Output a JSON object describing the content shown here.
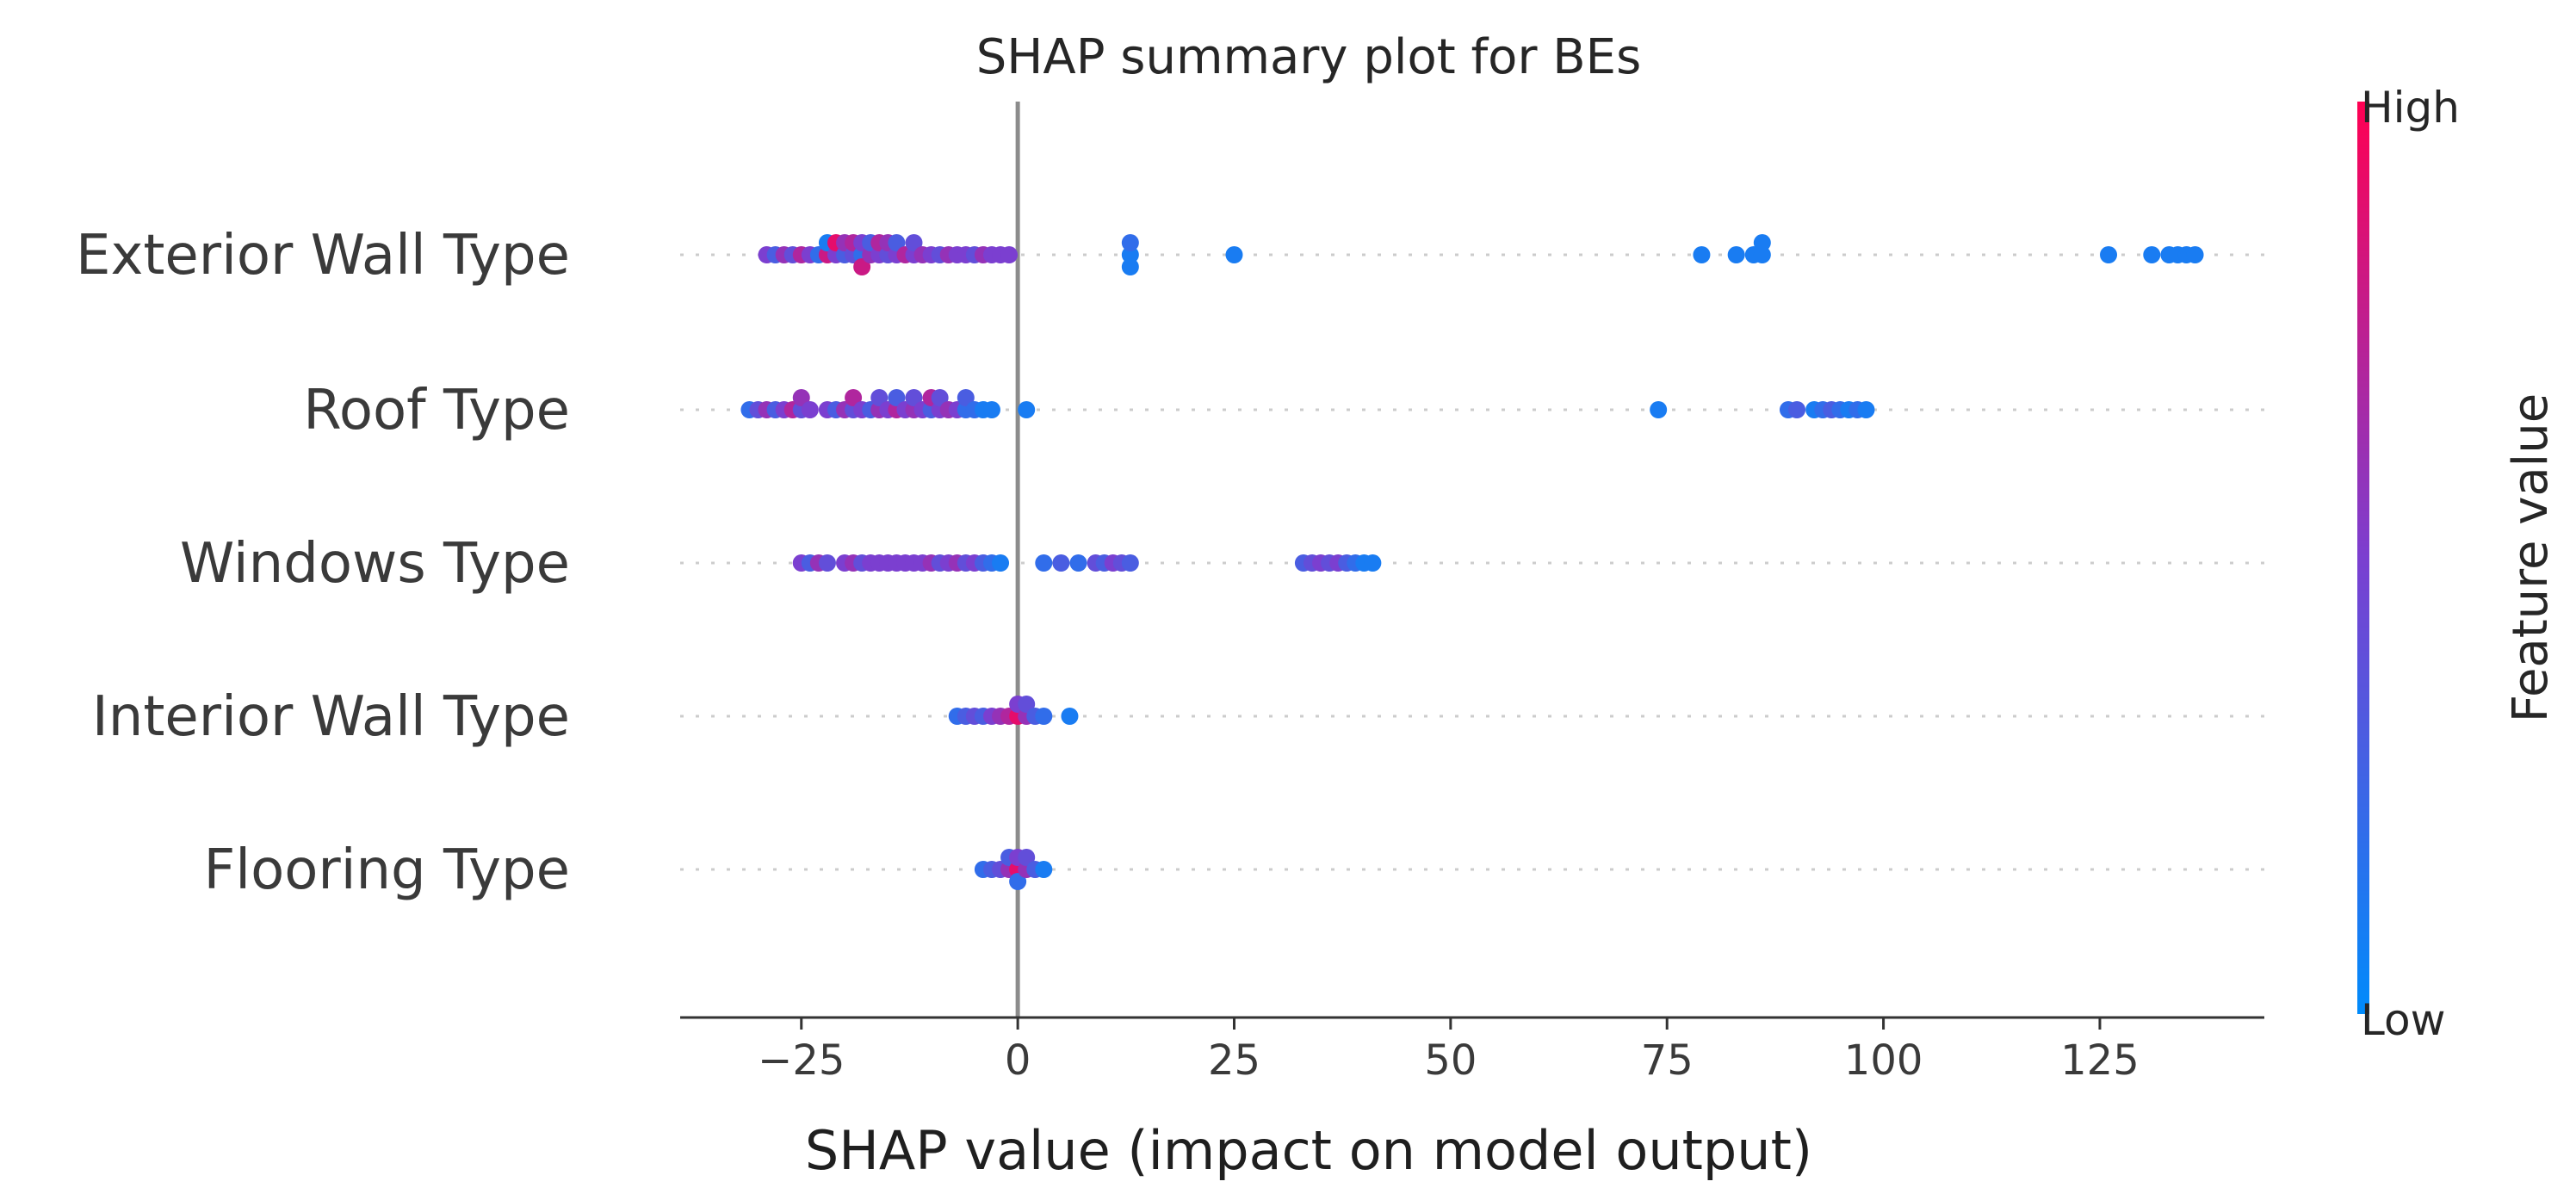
{
  "chart_data": {
    "type": "scatter",
    "title": "SHAP summary plot for BEs",
    "xlabel": "SHAP value (impact on model output)",
    "xlim": [
      -39,
      144
    ],
    "x_ticks": [
      -25,
      0,
      25,
      50,
      75,
      100,
      125
    ],
    "x_tick_labels": [
      "−25",
      "0",
      "25",
      "50",
      "75",
      "100",
      "125"
    ],
    "colorbar": {
      "title": "Feature value",
      "high_label": "High",
      "low_label": "Low",
      "high_color": "#ff0052",
      "low_color": "#008bfb"
    },
    "features": [
      {
        "name": "Exterior Wall Type",
        "points": [
          [
            -29,
            0.5
          ],
          [
            -28,
            0.3
          ],
          [
            -27,
            0.6
          ],
          [
            -26,
            0.4
          ],
          [
            -25,
            0.7
          ],
          [
            -24,
            0.5
          ],
          [
            -23,
            0.2
          ],
          [
            -22,
            0.8
          ],
          [
            -22,
            0.1
          ],
          [
            -21,
            0.5
          ],
          [
            -21,
            0.9
          ],
          [
            -20,
            0.3
          ],
          [
            -20,
            0.6
          ],
          [
            -19,
            0.4
          ],
          [
            -19,
            0.7
          ],
          [
            -18,
            0.2
          ],
          [
            -18,
            0.5
          ],
          [
            -18,
            0.8
          ],
          [
            -17,
            0.6
          ],
          [
            -17,
            0.3
          ],
          [
            -16,
            0.5
          ],
          [
            -16,
            0.7
          ],
          [
            -15,
            0.4
          ],
          [
            -15,
            0.6
          ],
          [
            -14,
            0.5
          ],
          [
            -14,
            0.3
          ],
          [
            -13,
            0.7
          ],
          [
            -12,
            0.5
          ],
          [
            -12,
            0.4
          ],
          [
            -11,
            0.6
          ],
          [
            -10,
            0.5
          ],
          [
            -9,
            0.4
          ],
          [
            -8,
            0.6
          ],
          [
            -7,
            0.5
          ],
          [
            -6,
            0.5
          ],
          [
            -5,
            0.4
          ],
          [
            -4,
            0.6
          ],
          [
            -3,
            0.5
          ],
          [
            -2,
            0.5
          ],
          [
            -1,
            0.5
          ],
          [
            13,
            0.1
          ],
          [
            13,
            0.2
          ],
          [
            13,
            0.1
          ],
          [
            25,
            0.1
          ],
          [
            79,
            0.1
          ],
          [
            83,
            0.1
          ],
          [
            85,
            0.1
          ],
          [
            86,
            0.1
          ],
          [
            86,
            0.1
          ],
          [
            126,
            0.1
          ],
          [
            131,
            0.1
          ],
          [
            133,
            0.1
          ],
          [
            134,
            0.1
          ],
          [
            135,
            0.1
          ],
          [
            136,
            0.1
          ]
        ]
      },
      {
        "name": "Roof Type",
        "points": [
          [
            -31,
            0.2
          ],
          [
            -30,
            0.4
          ],
          [
            -29,
            0.6
          ],
          [
            -28,
            0.3
          ],
          [
            -27,
            0.5
          ],
          [
            -26,
            0.7
          ],
          [
            -25,
            0.4
          ],
          [
            -25,
            0.6
          ],
          [
            -24,
            0.5
          ],
          [
            -22,
            0.5
          ],
          [
            -21,
            0.3
          ],
          [
            -20,
            0.6
          ],
          [
            -19,
            0.4
          ],
          [
            -19,
            0.7
          ],
          [
            -18,
            0.5
          ],
          [
            -17,
            0.3
          ],
          [
            -16,
            0.6
          ],
          [
            -16,
            0.4
          ],
          [
            -15,
            0.5
          ],
          [
            -14,
            0.7
          ],
          [
            -14,
            0.3
          ],
          [
            -13,
            0.5
          ],
          [
            -12,
            0.6
          ],
          [
            -12,
            0.4
          ],
          [
            -11,
            0.5
          ],
          [
            -10,
            0.3
          ],
          [
            -10,
            0.7
          ],
          [
            -9,
            0.5
          ],
          [
            -9,
            0.4
          ],
          [
            -8,
            0.6
          ],
          [
            -7,
            0.5
          ],
          [
            -6,
            0.2
          ],
          [
            -6,
            0.3
          ],
          [
            -5,
            0.2
          ],
          [
            -4,
            0.1
          ],
          [
            -3,
            0.1
          ],
          [
            1,
            0.1
          ],
          [
            74,
            0.1
          ],
          [
            89,
            0.2
          ],
          [
            90,
            0.3
          ],
          [
            92,
            0.1
          ],
          [
            93,
            0.2
          ],
          [
            94,
            0.3
          ],
          [
            95,
            0.2
          ],
          [
            96,
            0.1
          ],
          [
            97,
            0.2
          ],
          [
            98,
            0.1
          ]
        ]
      },
      {
        "name": "Windows Type",
        "points": [
          [
            -25,
            0.5
          ],
          [
            -24,
            0.3
          ],
          [
            -23,
            0.6
          ],
          [
            -22,
            0.4
          ],
          [
            -20,
            0.5
          ],
          [
            -19,
            0.6
          ],
          [
            -18,
            0.4
          ],
          [
            -17,
            0.5
          ],
          [
            -16,
            0.5
          ],
          [
            -15,
            0.5
          ],
          [
            -14,
            0.5
          ],
          [
            -13,
            0.5
          ],
          [
            -12,
            0.5
          ],
          [
            -11,
            0.5
          ],
          [
            -10,
            0.6
          ],
          [
            -9,
            0.4
          ],
          [
            -8,
            0.5
          ],
          [
            -7,
            0.6
          ],
          [
            -6,
            0.4
          ],
          [
            -5,
            0.5
          ],
          [
            -4,
            0.3
          ],
          [
            -3,
            0.2
          ],
          [
            -2,
            0.1
          ],
          [
            3,
            0.2
          ],
          [
            5,
            0.3
          ],
          [
            7,
            0.2
          ],
          [
            9,
            0.4
          ],
          [
            10,
            0.3
          ],
          [
            11,
            0.5
          ],
          [
            12,
            0.4
          ],
          [
            13,
            0.3
          ],
          [
            33,
            0.3
          ],
          [
            34,
            0.4
          ],
          [
            35,
            0.5
          ],
          [
            36,
            0.4
          ],
          [
            37,
            0.5
          ],
          [
            38,
            0.3
          ],
          [
            39,
            0.2
          ],
          [
            40,
            0.1
          ],
          [
            41,
            0.1
          ]
        ]
      },
      {
        "name": "Interior Wall Type",
        "points": [
          [
            -7,
            0.2
          ],
          [
            -6,
            0.3
          ],
          [
            -5,
            0.4
          ],
          [
            -4,
            0.3
          ],
          [
            -3,
            0.5
          ],
          [
            -2,
            0.6
          ],
          [
            -1,
            0.7
          ],
          [
            0,
            0.9
          ],
          [
            0,
            0.5
          ],
          [
            1,
            0.6
          ],
          [
            1,
            0.4
          ],
          [
            2,
            0.3
          ],
          [
            3,
            0.2
          ],
          [
            6,
            0.1
          ]
        ]
      },
      {
        "name": "Flooring Type",
        "points": [
          [
            -4,
            0.2
          ],
          [
            -3,
            0.3
          ],
          [
            -2,
            0.4
          ],
          [
            -1,
            0.6
          ],
          [
            -1,
            0.3
          ],
          [
            0,
            0.9
          ],
          [
            0,
            0.5
          ],
          [
            0,
            0.2
          ],
          [
            1,
            0.6
          ],
          [
            1,
            0.4
          ],
          [
            2,
            0.3
          ],
          [
            3,
            0.1
          ]
        ]
      }
    ]
  }
}
